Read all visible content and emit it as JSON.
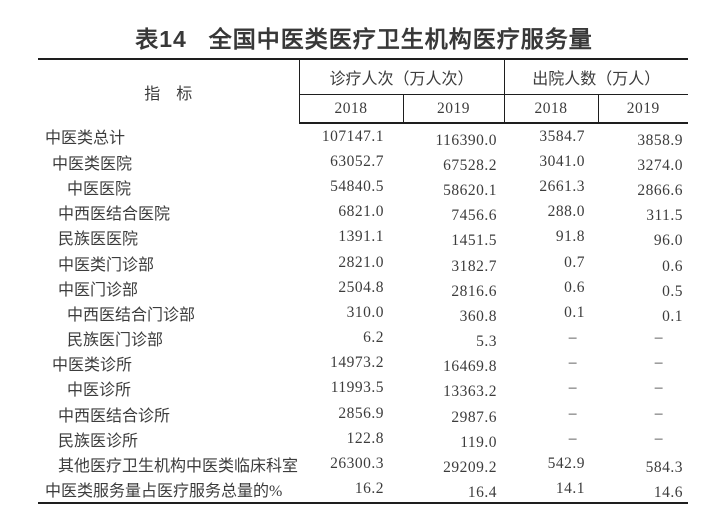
{
  "title": {
    "prefix": "表14",
    "text": "全国中医类医疗卫生机构医疗服务量"
  },
  "table": {
    "indicator_header": "指　标",
    "col_groups": [
      {
        "label": "诊疗人次（万人次）",
        "years": [
          "2018",
          "2019"
        ]
      },
      {
        "label": "出院人数（万人）",
        "years": [
          "2018",
          "2019"
        ]
      }
    ],
    "missing_value_mark": "–",
    "rows": [
      {
        "label": "中医类总计",
        "indent": 0,
        "values": [
          "107147.1",
          "116390.0",
          "3584.7",
          "3858.9"
        ]
      },
      {
        "label": "中医类医院",
        "indent": 1,
        "values": [
          "63052.7",
          "67528.2",
          "3041.0",
          "3274.0"
        ]
      },
      {
        "label": "中医医院",
        "indent": 3,
        "values": [
          "54840.5",
          "58620.1",
          "2661.3",
          "2866.6"
        ]
      },
      {
        "label": "中西医结合医院",
        "indent": 2,
        "values": [
          "6821.0",
          "7456.6",
          "288.0",
          "311.5"
        ]
      },
      {
        "label": "民族医医院",
        "indent": 2,
        "values": [
          "1391.1",
          "1451.5",
          "91.8",
          "96.0"
        ]
      },
      {
        "label": "中医类门诊部",
        "indent": 2,
        "values": [
          "2821.0",
          "3182.7",
          "0.7",
          "0.6"
        ]
      },
      {
        "label": "中医门诊部",
        "indent": 2,
        "values": [
          "2504.8",
          "2816.6",
          "0.6",
          "0.5"
        ]
      },
      {
        "label": "中西医结合门诊部",
        "indent": 3,
        "values": [
          "310.0",
          "360.8",
          "0.1",
          "0.1"
        ]
      },
      {
        "label": "民族医门诊部",
        "indent": 3,
        "values": [
          "6.2",
          "5.3",
          "–",
          "–"
        ]
      },
      {
        "label": "中医类诊所",
        "indent": 1,
        "values": [
          "14973.2",
          "16469.8",
          "–",
          "–"
        ]
      },
      {
        "label": "中医诊所",
        "indent": 3,
        "values": [
          "11993.5",
          "13363.2",
          "–",
          "–"
        ]
      },
      {
        "label": "中西医结合诊所",
        "indent": 2,
        "values": [
          "2856.9",
          "2987.6",
          "–",
          "–"
        ]
      },
      {
        "label": "民族医诊所",
        "indent": 2,
        "values": [
          "122.8",
          "119.0",
          "–",
          "–"
        ]
      },
      {
        "label": "其他医疗卫生机构中医类临床科室",
        "indent": 2,
        "values": [
          "26300.3",
          "29209.2",
          "542.9",
          "584.3"
        ]
      },
      {
        "label": "中医类服务量占医疗服务总量的%",
        "indent": 0,
        "values": [
          "16.2",
          "16.4",
          "14.1",
          "14.6"
        ]
      }
    ]
  },
  "colors": {
    "background": "#ffffff",
    "text": "#3c3c3c",
    "title_text": "#383838",
    "border": "#1e1e1e"
  }
}
